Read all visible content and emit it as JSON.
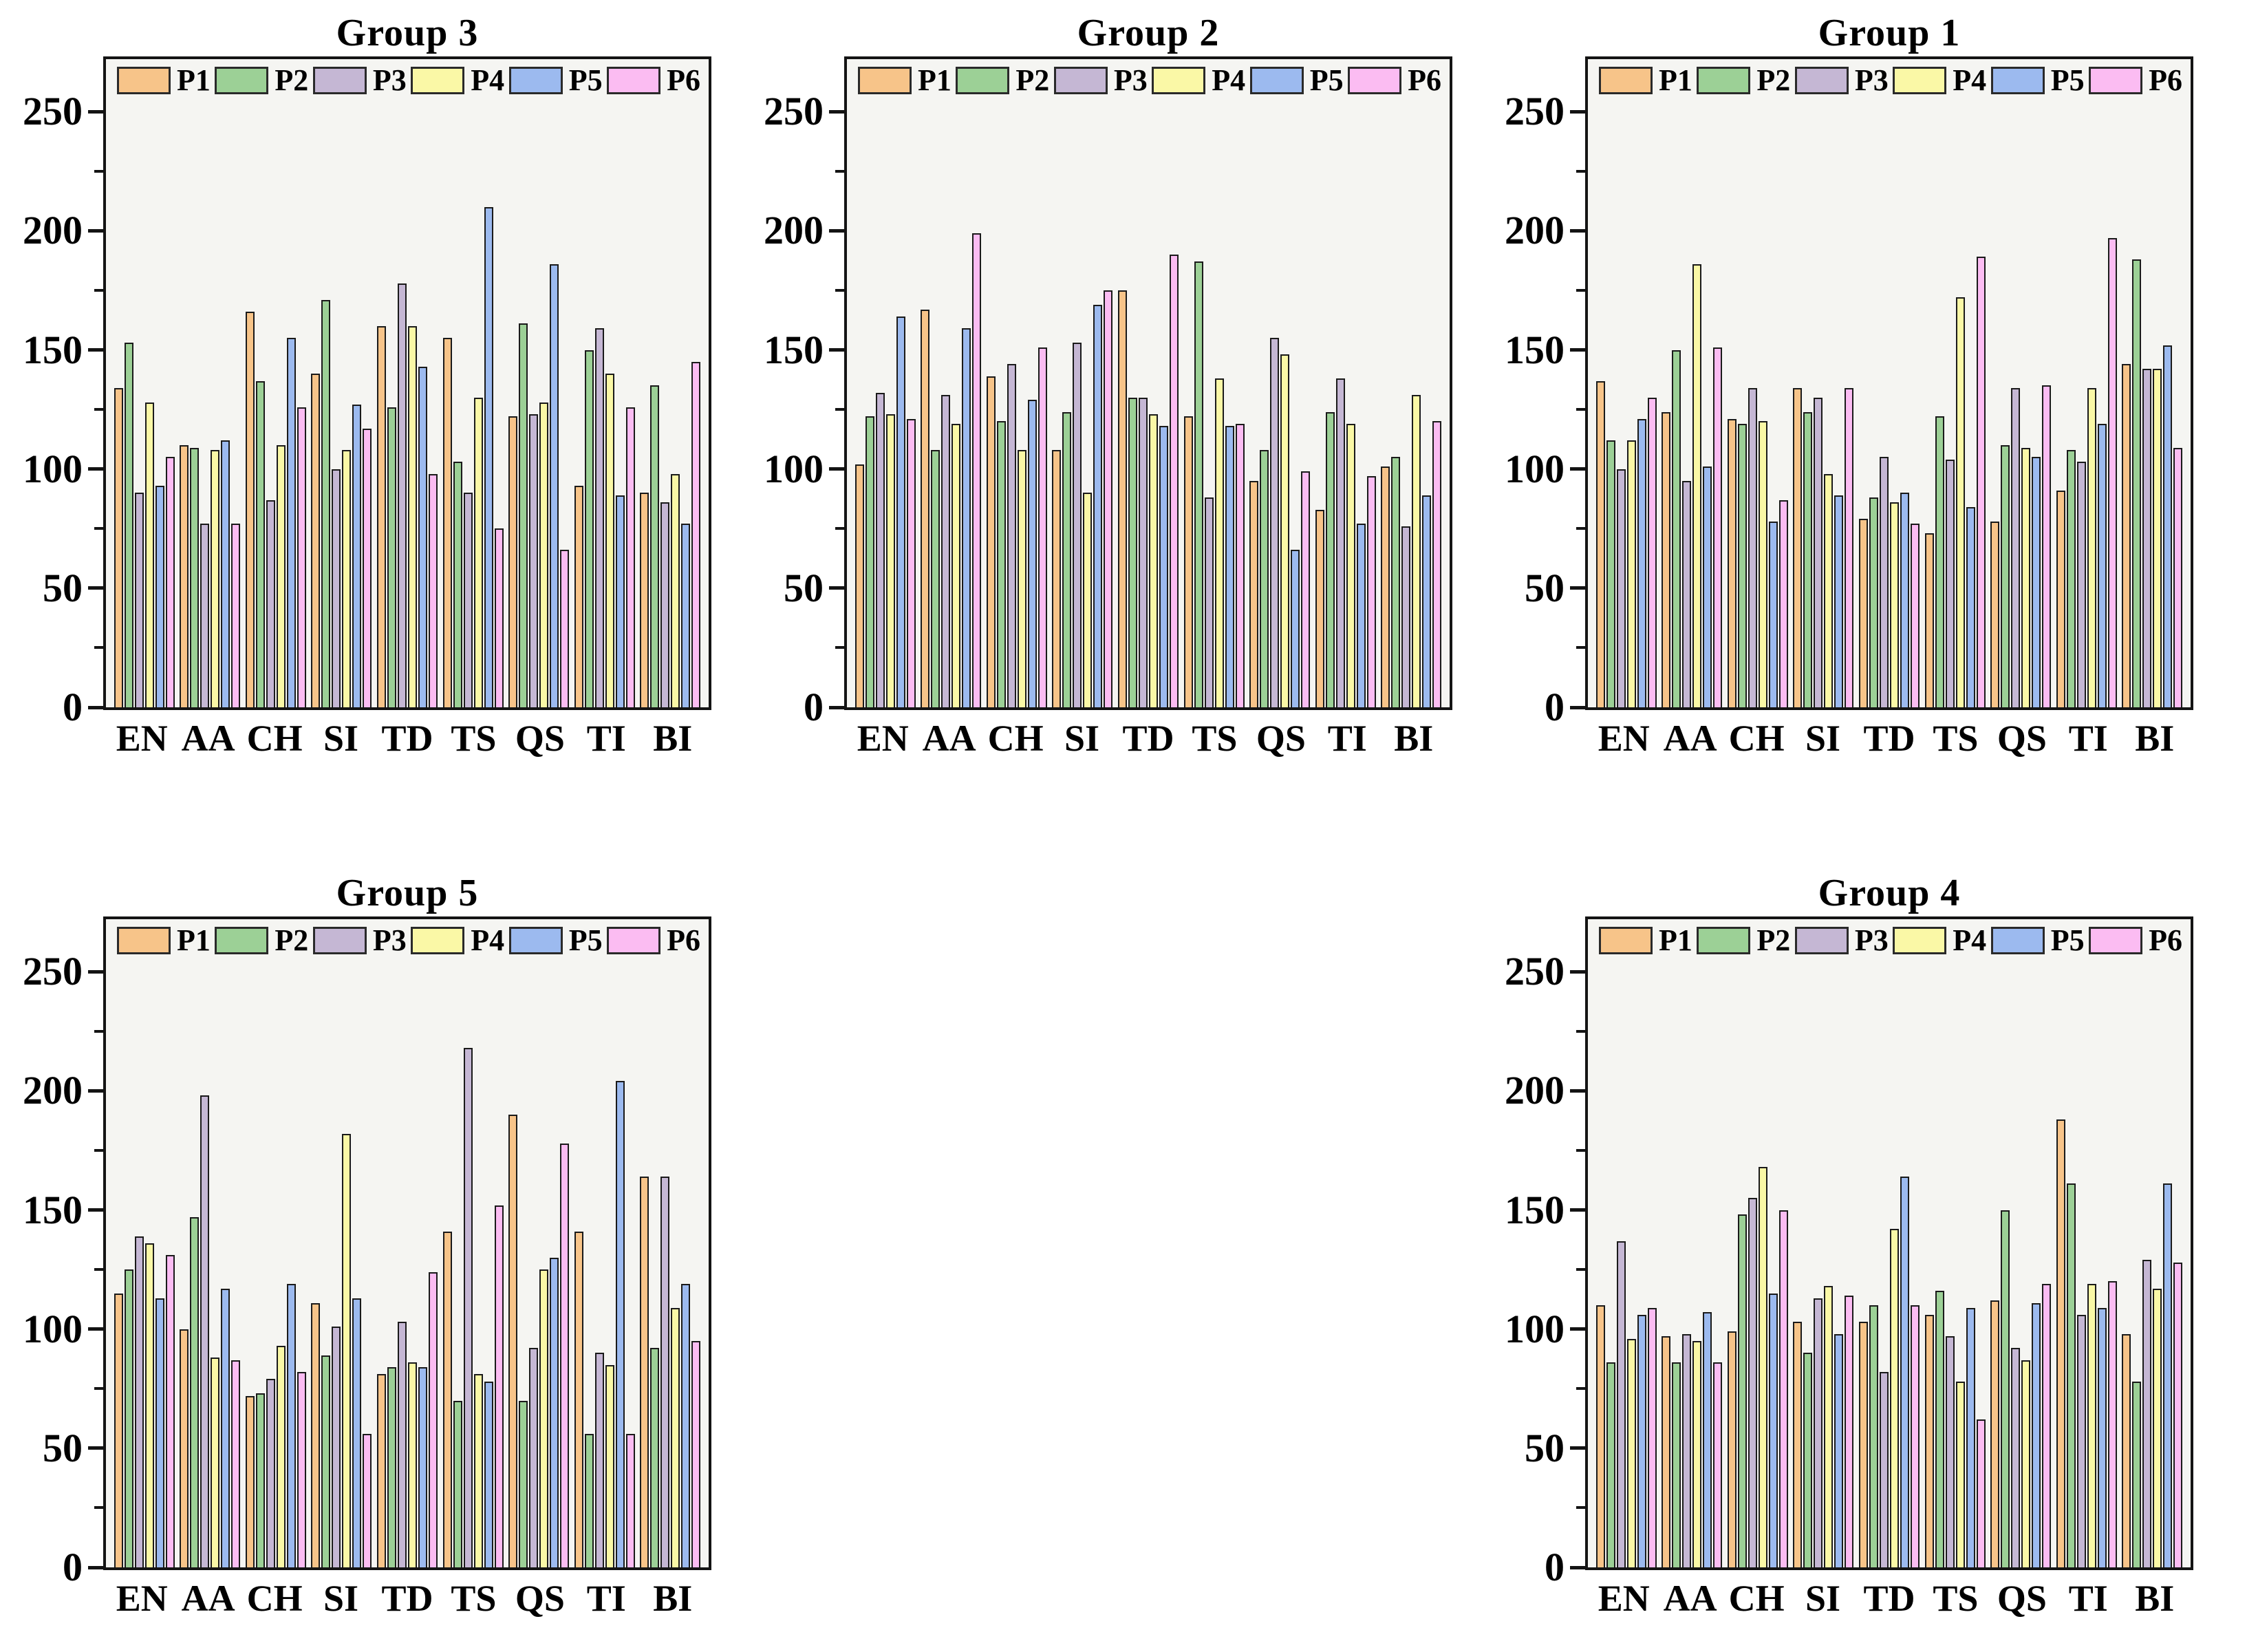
{
  "figure": {
    "background": "#ffffff",
    "plot_background": "#f5f5f2",
    "frame_color": "#141414",
    "bar_border_color": "#1a1a1a",
    "text_color": "#000000"
  },
  "chart_data": [
    {
      "type": "bar",
      "title": "Group 3",
      "grid_position": {
        "row": 0,
        "col": 0
      },
      "categories": [
        "EN",
        "AA",
        "CH",
        "SI",
        "TD",
        "TS",
        "QS",
        "TI",
        "BI"
      ],
      "series": [
        {
          "name": "P1",
          "color": "#F7C489",
          "values": [
            134,
            110,
            166,
            140,
            160,
            155,
            122,
            93,
            90
          ]
        },
        {
          "name": "P2",
          "color": "#9CD096",
          "values": [
            153,
            109,
            137,
            171,
            126,
            103,
            161,
            150,
            135
          ]
        },
        {
          "name": "P3",
          "color": "#C5B7D4",
          "values": [
            90,
            77,
            87,
            100,
            178,
            90,
            123,
            159,
            86
          ]
        },
        {
          "name": "P4",
          "color": "#FAF8A6",
          "values": [
            128,
            108,
            110,
            108,
            160,
            130,
            128,
            140,
            98
          ]
        },
        {
          "name": "P5",
          "color": "#9CBAEF",
          "values": [
            93,
            112,
            155,
            127,
            143,
            210,
            186,
            89,
            77
          ]
        },
        {
          "name": "P6",
          "color": "#FBBCF2",
          "values": [
            105,
            77,
            126,
            117,
            98,
            75,
            66,
            126,
            145
          ]
        }
      ],
      "ylim": [
        0,
        272
      ],
      "yticks_major": [
        0,
        50,
        100,
        150,
        200,
        250
      ],
      "yticks_minor": [
        25,
        75,
        125,
        175,
        225
      ],
      "grid": false,
      "legend_position": "top-inside"
    },
    {
      "type": "bar",
      "title": "Group 2",
      "grid_position": {
        "row": 0,
        "col": 1
      },
      "categories": [
        "EN",
        "AA",
        "CH",
        "SI",
        "TD",
        "TS",
        "QS",
        "TI",
        "BI"
      ],
      "series": [
        {
          "name": "P1",
          "color": "#F7C489",
          "values": [
            102,
            167,
            139,
            108,
            175,
            122,
            95,
            83,
            101
          ]
        },
        {
          "name": "P2",
          "color": "#9CD096",
          "values": [
            122,
            108,
            120,
            124,
            130,
            187,
            108,
            124,
            105
          ]
        },
        {
          "name": "P3",
          "color": "#C5B7D4",
          "values": [
            132,
            131,
            144,
            153,
            130,
            88,
            155,
            138,
            76
          ]
        },
        {
          "name": "P4",
          "color": "#FAF8A6",
          "values": [
            123,
            119,
            108,
            90,
            123,
            138,
            148,
            119,
            131
          ]
        },
        {
          "name": "P5",
          "color": "#9CBAEF",
          "values": [
            164,
            159,
            129,
            169,
            118,
            118,
            66,
            77,
            89
          ]
        },
        {
          "name": "P6",
          "color": "#FBBCF2",
          "values": [
            121,
            199,
            151,
            175,
            190,
            119,
            99,
            97,
            120
          ]
        }
      ],
      "ylim": [
        0,
        272
      ],
      "yticks_major": [
        0,
        50,
        100,
        150,
        200,
        250
      ],
      "yticks_minor": [
        25,
        75,
        125,
        175,
        225
      ],
      "grid": false,
      "legend_position": "top-inside"
    },
    {
      "type": "bar",
      "title": "Group 1",
      "grid_position": {
        "row": 0,
        "col": 2
      },
      "categories": [
        "EN",
        "AA",
        "CH",
        "SI",
        "TD",
        "TS",
        "QS",
        "TI",
        "BI"
      ],
      "series": [
        {
          "name": "P1",
          "color": "#F7C489",
          "values": [
            137,
            124,
            121,
            134,
            79,
            73,
            78,
            91,
            144
          ]
        },
        {
          "name": "P2",
          "color": "#9CD096",
          "values": [
            112,
            150,
            119,
            124,
            88,
            122,
            110,
            108,
            188
          ]
        },
        {
          "name": "P3",
          "color": "#C5B7D4",
          "values": [
            100,
            95,
            134,
            130,
            105,
            104,
            134,
            103,
            142
          ]
        },
        {
          "name": "P4",
          "color": "#FAF8A6",
          "values": [
            112,
            186,
            120,
            98,
            86,
            172,
            109,
            134,
            142
          ]
        },
        {
          "name": "P5",
          "color": "#9CBAEF",
          "values": [
            121,
            101,
            78,
            89,
            90,
            84,
            105,
            119,
            152
          ]
        },
        {
          "name": "P6",
          "color": "#FBBCF2",
          "values": [
            130,
            151,
            87,
            134,
            77,
            189,
            135,
            197,
            109
          ]
        }
      ],
      "ylim": [
        0,
        272
      ],
      "yticks_major": [
        0,
        50,
        100,
        150,
        200,
        250
      ],
      "yticks_minor": [
        25,
        75,
        125,
        175,
        225
      ],
      "grid": false,
      "legend_position": "top-inside"
    },
    {
      "type": "bar",
      "title": "Group 5",
      "grid_position": {
        "row": 1,
        "col": 0
      },
      "categories": [
        "EN",
        "AA",
        "CH",
        "SI",
        "TD",
        "TS",
        "QS",
        "TI",
        "BI"
      ],
      "series": [
        {
          "name": "P1",
          "color": "#F7C489",
          "values": [
            115,
            100,
            72,
            111,
            81,
            141,
            190,
            141,
            164
          ]
        },
        {
          "name": "P2",
          "color": "#9CD096",
          "values": [
            125,
            147,
            73,
            89,
            84,
            70,
            70,
            56,
            92
          ]
        },
        {
          "name": "P3",
          "color": "#C5B7D4",
          "values": [
            139,
            198,
            79,
            101,
            103,
            218,
            92,
            90,
            164
          ]
        },
        {
          "name": "P4",
          "color": "#FAF8A6",
          "values": [
            136,
            88,
            93,
            182,
            86,
            81,
            125,
            85,
            109
          ]
        },
        {
          "name": "P5",
          "color": "#9CBAEF",
          "values": [
            113,
            117,
            119,
            113,
            84,
            78,
            130,
            204,
            119
          ]
        },
        {
          "name": "P6",
          "color": "#FBBCF2",
          "values": [
            131,
            87,
            82,
            56,
            124,
            152,
            178,
            56,
            95
          ]
        }
      ],
      "ylim": [
        0,
        272
      ],
      "yticks_major": [
        0,
        50,
        100,
        150,
        200,
        250
      ],
      "yticks_minor": [
        25,
        75,
        125,
        175,
        225
      ],
      "grid": false,
      "legend_position": "top-inside"
    },
    {
      "type": "bar",
      "title": "Group 4",
      "grid_position": {
        "row": 1,
        "col": 2
      },
      "categories": [
        "EN",
        "AA",
        "CH",
        "SI",
        "TD",
        "TS",
        "QS",
        "TI",
        "BI"
      ],
      "series": [
        {
          "name": "P1",
          "color": "#F7C489",
          "values": [
            110,
            97,
            99,
            103,
            103,
            106,
            112,
            188,
            98
          ]
        },
        {
          "name": "P2",
          "color": "#9CD096",
          "values": [
            86,
            86,
            148,
            90,
            110,
            116,
            150,
            161,
            78
          ]
        },
        {
          "name": "P3",
          "color": "#C5B7D4",
          "values": [
            137,
            98,
            155,
            113,
            82,
            97,
            92,
            106,
            129
          ]
        },
        {
          "name": "P4",
          "color": "#FAF8A6",
          "values": [
            96,
            95,
            168,
            118,
            142,
            78,
            87,
            119,
            117
          ]
        },
        {
          "name": "P5",
          "color": "#9CBAEF",
          "values": [
            106,
            107,
            115,
            98,
            164,
            109,
            111,
            109,
            161
          ]
        },
        {
          "name": "P6",
          "color": "#FBBCF2",
          "values": [
            109,
            86,
            150,
            114,
            110,
            62,
            119,
            120,
            128
          ]
        }
      ],
      "ylim": [
        0,
        272
      ],
      "yticks_major": [
        0,
        50,
        100,
        150,
        200,
        250
      ],
      "yticks_minor": [
        25,
        75,
        125,
        175,
        225
      ],
      "grid": false,
      "legend_position": "top-inside"
    }
  ]
}
